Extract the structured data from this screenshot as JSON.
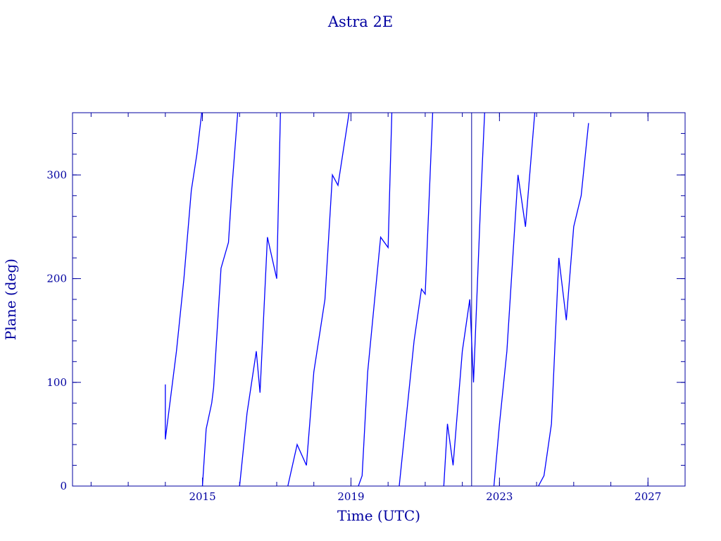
{
  "chart_data": {
    "type": "line",
    "title": "Astra 2E",
    "xlabel": "Time (UTC)",
    "ylabel": "Plane (deg)",
    "xlim": [
      2011.5,
      2028.0
    ],
    "ylim": [
      0,
      360
    ],
    "x_major_ticks": [
      2015,
      2019,
      2023,
      2027
    ],
    "x_tick_labels": [
      "2015",
      "2019",
      "2023",
      "2027"
    ],
    "x_minor_step": 1,
    "y_major_ticks": [
      0,
      100,
      200,
      300
    ],
    "y_tick_labels": [
      "0",
      "100",
      "200",
      "300"
    ],
    "y_minor_step": 20,
    "grid": false,
    "wrap_at": 360,
    "vertical_marker_x": 2022.25,
    "line_color": "#0000ff",
    "axis_color": "#0000a0",
    "series": [
      {
        "x": [
          2014.0,
          2014.0,
          2014.3,
          2014.5,
          2014.7,
          2014.85,
          2014.98,
          2015.0,
          2015.1,
          2015.25,
          2015.3,
          2015.5,
          2015.7,
          2015.8,
          2015.95,
          2016.0,
          2016.2,
          2016.45,
          2016.55,
          2016.75,
          2017.0,
          2017.1,
          2017.3,
          2017.55,
          2017.8,
          2018.0,
          2018.3,
          2018.5,
          2018.65,
          2018.95,
          2019.2,
          2019.3,
          2019.45,
          2019.8,
          2020.0,
          2020.1,
          2020.3,
          2020.7,
          2020.9,
          2021.0,
          2021.2,
          2021.5,
          2021.6,
          2021.75,
          2022.0,
          2022.2,
          2022.3,
          2022.5,
          2022.6,
          2022.85,
          2023.0,
          2023.2,
          2023.5,
          2023.7,
          2023.95,
          2024.05,
          2024.2,
          2024.4,
          2024.6,
          2024.8,
          2025.0,
          2025.2,
          2025.4
        ],
        "y": [
          98,
          45,
          130,
          200,
          285,
          320,
          360,
          0,
          55,
          80,
          95,
          210,
          235,
          290,
          360,
          0,
          70,
          130,
          90,
          240,
          200,
          360,
          0,
          40,
          20,
          110,
          180,
          300,
          290,
          360,
          0,
          10,
          110,
          240,
          230,
          360,
          0,
          140,
          190,
          185,
          360,
          0,
          60,
          20,
          130,
          180,
          100,
          280,
          360,
          0,
          60,
          130,
          300,
          250,
          360,
          0,
          10,
          60,
          220,
          160,
          250,
          280,
          350
        ]
      }
    ]
  }
}
